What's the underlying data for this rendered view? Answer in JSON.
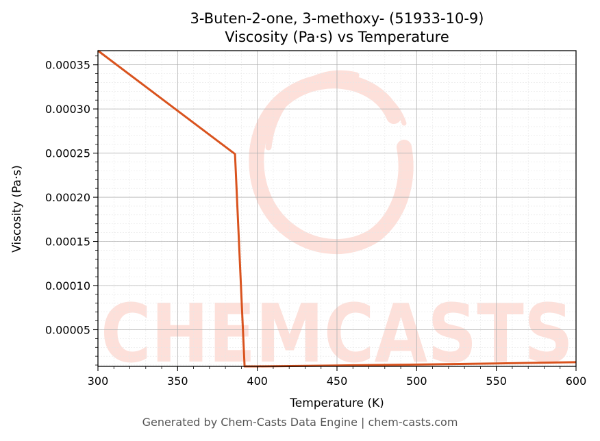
{
  "chart_data": {
    "type": "line",
    "title": "3-Buten-2-one, 3-methoxy- (51933-10-9)",
    "subtitle": "Viscosity (Pa·s) vs Temperature",
    "xlabel": "Temperature (K)",
    "ylabel": "Viscosity (Pa·s)",
    "xlim": [
      300,
      600
    ],
    "ylim": [
      8.5e-06,
      0.000366
    ],
    "x_ticks": [
      300,
      350,
      400,
      450,
      500,
      550,
      600
    ],
    "x_tick_labels": [
      "300",
      "350",
      "400",
      "450",
      "500",
      "550",
      "600"
    ],
    "y_ticks": [
      5e-05,
      0.0001,
      0.00015,
      0.0002,
      0.00025,
      0.0003,
      0.00035
    ],
    "y_tick_labels": [
      "0.00005",
      "0.00010",
      "0.00015",
      "0.00020",
      "0.00025",
      "0.00030",
      "0.00035"
    ],
    "grid": true,
    "series": [
      {
        "color": "#d9531e",
        "x": [
          300,
          386,
          392,
          400,
          450,
          500,
          550,
          600
        ],
        "y": [
          0.000366,
          0.000249,
          8.5e-06,
          8.5e-06,
          9.5e-06,
          1.05e-05,
          1.18e-05,
          1.32e-05
        ]
      }
    ]
  },
  "watermark": {
    "text": "CHEMCASTS",
    "color": "#fde0da"
  },
  "footer": "Generated by Chem-Casts Data Engine | chem-casts.com"
}
